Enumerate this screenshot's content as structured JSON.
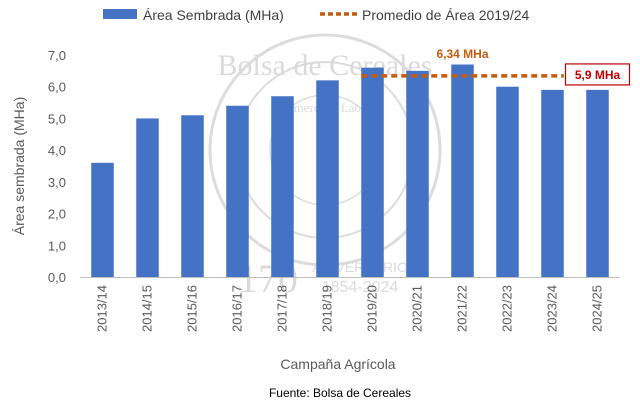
{
  "chart_data": {
    "type": "bar",
    "categories": [
      "2013/14",
      "2014/15",
      "2015/16",
      "2016/17",
      "2017/18",
      "2018/19",
      "2019/20",
      "2020/21",
      "2021/22",
      "2022/23",
      "2023/24",
      "2024/25"
    ],
    "series": [
      {
        "name": "Área Sembrada (MHa)",
        "values": [
          3.6,
          5.0,
          5.1,
          5.4,
          5.7,
          6.2,
          6.6,
          6.5,
          6.7,
          6.0,
          5.9,
          5.9
        ],
        "color": "#4472C4"
      }
    ],
    "average": {
      "name": "Promedio de Área 2019/24",
      "value": 6.34,
      "from": "2019/20",
      "to": "2023/24",
      "color": "#C55A11",
      "style": "dashed"
    },
    "annotations": {
      "average_label": "6,34 MHa",
      "last_label": "5,9 MHa",
      "last_color": "#C00000"
    },
    "xlabel": "Campaña Agrícola",
    "ylabel": "Área sembrada (MHa)",
    "ylim": [
      0,
      7
    ],
    "yticks": [
      "0,0",
      "1,0",
      "2,0",
      "3,0",
      "4,0",
      "5,0",
      "6,0",
      "7,0"
    ],
    "legend_position": "top",
    "grid": false,
    "source": "Fuente: Bolsa de Cereales",
    "watermark": {
      "text_top": "Bolsa de Cereales",
      "text_middle": "Comercio • Labor",
      "anniversary_number": "170",
      "anniversary_word": "ANIVERSARIO",
      "anniversary_years": "1854-2024"
    }
  }
}
